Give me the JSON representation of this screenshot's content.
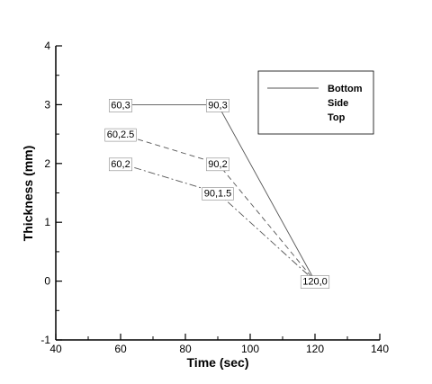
{
  "chart_data": {
    "type": "line",
    "xlabel": "Time (sec)",
    "ylabel": "Thickness (mm)",
    "xlim": [
      40,
      140
    ],
    "ylim": [
      -1,
      4
    ],
    "x_ticks": [
      40,
      60,
      80,
      100,
      120,
      140
    ],
    "y_ticks": [
      -1,
      0,
      1,
      2,
      3,
      4
    ],
    "grid": false,
    "legend_position": "top-right",
    "series": [
      {
        "name": "Bottom",
        "line_style": "solid",
        "points": [
          {
            "x": 60,
            "y": 3
          },
          {
            "x": 90,
            "y": 3
          },
          {
            "x": 120,
            "y": 0
          }
        ]
      },
      {
        "name": "Side",
        "line_style": "dashed",
        "points": [
          {
            "x": 60,
            "y": 2.5
          },
          {
            "x": 90,
            "y": 2
          },
          {
            "x": 120,
            "y": 0
          }
        ]
      },
      {
        "name": "Top",
        "line_style": "dashdot",
        "points": [
          {
            "x": 60,
            "y": 2
          },
          {
            "x": 90,
            "y": 1.5
          },
          {
            "x": 120,
            "y": 0
          }
        ]
      }
    ],
    "annotations": [
      {
        "text": "60,3",
        "x": 60,
        "y": 3
      },
      {
        "text": "90,3",
        "x": 90,
        "y": 3
      },
      {
        "text": "60,2.5",
        "x": 60,
        "y": 2.5
      },
      {
        "text": "90,2",
        "x": 90,
        "y": 2
      },
      {
        "text": "60,2",
        "x": 60,
        "y": 2
      },
      {
        "text": "90,1.5",
        "x": 90,
        "y": 1.5
      },
      {
        "text": "120,0",
        "x": 120,
        "y": 0
      }
    ],
    "colors": {
      "line": "#555555",
      "axis": "#000000",
      "background": "#ffffff"
    }
  }
}
